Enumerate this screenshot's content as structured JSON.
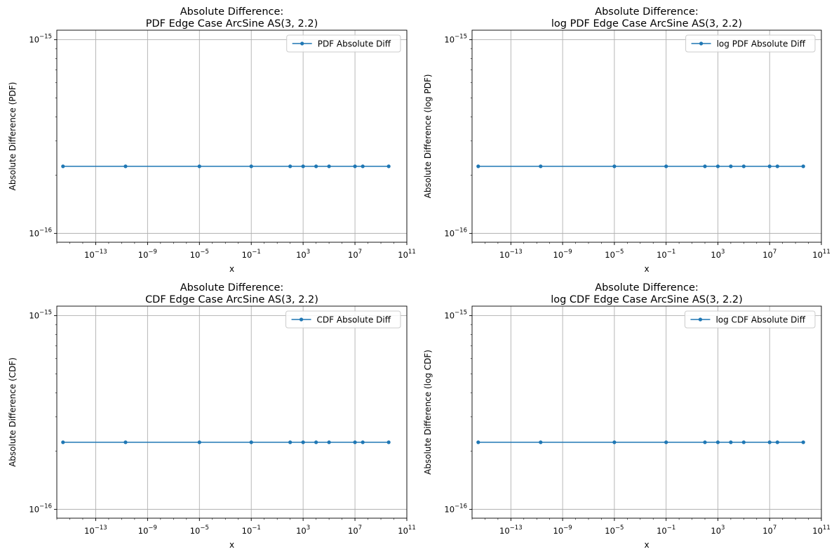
{
  "chart_data": [
    {
      "type": "line",
      "title": [
        "Absolute Difference:",
        "PDF Edge Case ArcSine AS(3, 2.2)"
      ],
      "xlabel": "x",
      "ylabel": "Absolute Difference (PDF)",
      "xscale": "log",
      "yscale": "log",
      "xlim": [
        1e-16,
        100000000000.0
      ],
      "ylim": [
        9e-17,
        1.12e-15
      ],
      "xticks": [
        "10^-13",
        "10^-9",
        "10^-5",
        "10^-1",
        "10^3",
        "10^7",
        "10^11"
      ],
      "yticks": [
        "10^-15",
        "10^-16"
      ],
      "grid": true,
      "legend_position": "top-right",
      "series": [
        {
          "name": "PDF Absolute Diff",
          "x": [
            3e-16,
            2e-11,
            1e-05,
            0.1,
            100,
            1000,
            10000,
            100000,
            10000000,
            40000000,
            4000000000
          ],
          "y": [
            2.22e-16,
            2.22e-16,
            2.22e-16,
            2.22e-16,
            2.22e-16,
            2.22e-16,
            2.22e-16,
            2.22e-16,
            2.22e-16,
            2.22e-16,
            2.22e-16
          ]
        }
      ]
    },
    {
      "type": "line",
      "title": [
        "Absolute Difference:",
        "log PDF Edge Case ArcSine AS(3, 2.2)"
      ],
      "xlabel": "x",
      "ylabel": "Absolute Difference (log PDF)",
      "xscale": "log",
      "yscale": "log",
      "xlim": [
        1e-16,
        100000000000.0
      ],
      "ylim": [
        9e-17,
        1.12e-15
      ],
      "xticks": [
        "10^-13",
        "10^-9",
        "10^-5",
        "10^-1",
        "10^3",
        "10^7",
        "10^11"
      ],
      "yticks": [
        "10^-15",
        "10^-16"
      ],
      "grid": true,
      "legend_position": "top-right",
      "series": [
        {
          "name": "log PDF Absolute Diff",
          "x": [
            3e-16,
            2e-11,
            1e-05,
            0.1,
            100,
            1000,
            10000,
            100000,
            10000000,
            40000000,
            4000000000
          ],
          "y": [
            2.22e-16,
            2.22e-16,
            2.22e-16,
            2.22e-16,
            2.22e-16,
            2.22e-16,
            2.22e-16,
            2.22e-16,
            2.22e-16,
            2.22e-16,
            2.22e-16
          ]
        }
      ]
    },
    {
      "type": "line",
      "title": [
        "Absolute Difference:",
        "CDF Edge Case ArcSine AS(3, 2.2)"
      ],
      "xlabel": "x",
      "ylabel": "Absolute Difference (CDF)",
      "xscale": "log",
      "yscale": "log",
      "xlim": [
        1e-16,
        100000000000.0
      ],
      "ylim": [
        9e-17,
        1.12e-15
      ],
      "xticks": [
        "10^-13",
        "10^-9",
        "10^-5",
        "10^-1",
        "10^3",
        "10^7",
        "10^11"
      ],
      "yticks": [
        "10^-15",
        "10^-16"
      ],
      "grid": true,
      "legend_position": "top-right",
      "series": [
        {
          "name": "CDF Absolute Diff",
          "x": [
            3e-16,
            2e-11,
            1e-05,
            0.1,
            100,
            1000,
            10000,
            100000,
            10000000,
            40000000,
            4000000000
          ],
          "y": [
            2.22e-16,
            2.22e-16,
            2.22e-16,
            2.22e-16,
            2.22e-16,
            2.22e-16,
            2.22e-16,
            2.22e-16,
            2.22e-16,
            2.22e-16,
            2.22e-16
          ]
        }
      ]
    },
    {
      "type": "line",
      "title": [
        "Absolute Difference:",
        "log CDF Edge Case ArcSine AS(3, 2.2)"
      ],
      "xlabel": "x",
      "ylabel": "Absolute Difference (log CDF)",
      "xscale": "log",
      "yscale": "log",
      "xlim": [
        1e-16,
        100000000000.0
      ],
      "ylim": [
        9e-17,
        1.12e-15
      ],
      "xticks": [
        "10^-13",
        "10^-9",
        "10^-5",
        "10^-1",
        "10^3",
        "10^7",
        "10^11"
      ],
      "yticks": [
        "10^-15",
        "10^-16"
      ],
      "grid": true,
      "legend_position": "top-right",
      "series": [
        {
          "name": "log CDF Absolute Diff",
          "x": [
            3e-16,
            2e-11,
            1e-05,
            0.1,
            100,
            1000,
            10000,
            100000,
            10000000,
            40000000,
            4000000000
          ],
          "y": [
            2.22e-16,
            2.22e-16,
            2.22e-16,
            2.22e-16,
            2.22e-16,
            2.22e-16,
            2.22e-16,
            2.22e-16,
            2.22e-16,
            2.22e-16,
            2.22e-16
          ]
        }
      ]
    }
  ],
  "colors": {
    "series": "#1f77b4",
    "grid": "#b0b0b0",
    "axes": "#000000",
    "legend_border": "#cccccc"
  }
}
